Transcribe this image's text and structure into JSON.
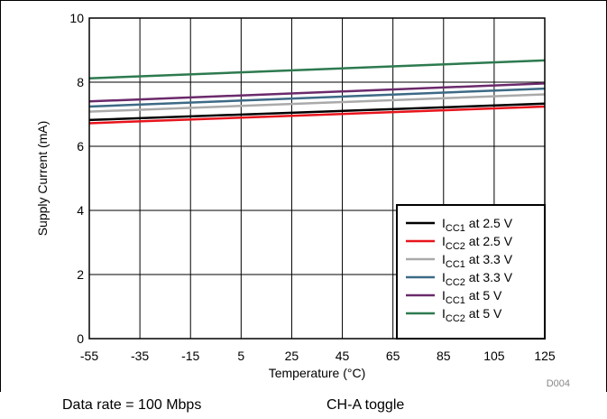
{
  "chart_data": {
    "type": "line",
    "xlabel": "Temperature (°C)",
    "ylabel": "Supply Current (mA)",
    "xlim": [
      -55,
      125
    ],
    "ylim": [
      0,
      10
    ],
    "x_ticks": [
      "-55",
      "-35",
      "-15",
      "5",
      "25",
      "45",
      "65",
      "85",
      "105",
      "125"
    ],
    "y_ticks": [
      "0",
      "2",
      "4",
      "6",
      "8",
      "10"
    ],
    "grid": true,
    "legend_position": "bottom-right",
    "figure_id": "D004",
    "series": [
      {
        "name_main": "I",
        "name_sub": "CC1",
        "name_rest": " at 2.5 V",
        "color": "#000000",
        "x": [
          -55,
          125
        ],
        "y": [
          6.82,
          7.33
        ]
      },
      {
        "name_main": "I",
        "name_sub": "CC2",
        "name_rest": " at 2.5 V",
        "color": "#e8141c",
        "x": [
          -55,
          125
        ],
        "y": [
          6.72,
          7.24
        ]
      },
      {
        "name_main": "I",
        "name_sub": "CC1",
        "name_rest": " at 3.3 V",
        "color": "#aaaaaa",
        "x": [
          -55,
          125
        ],
        "y": [
          7.08,
          7.62
        ]
      },
      {
        "name_main": "I",
        "name_sub": "CC2",
        "name_rest": " at 3.3 V",
        "color": "#3d6a86",
        "x": [
          -55,
          125
        ],
        "y": [
          7.24,
          7.8
        ]
      },
      {
        "name_main": "I",
        "name_sub": "CC1",
        "name_rest": " at 5 V",
        "color": "#6b2a6b",
        "x": [
          -55,
          125
        ],
        "y": [
          7.4,
          7.96
        ]
      },
      {
        "name_main": "I",
        "name_sub": "CC2",
        "name_rest": " at 5 V",
        "color": "#2d7a4f",
        "x": [
          -55,
          125
        ],
        "y": [
          8.12,
          8.68
        ]
      }
    ]
  },
  "captions": {
    "data_rate": "Data rate = 100 Mbps",
    "toggle": "CH-A toggle"
  }
}
